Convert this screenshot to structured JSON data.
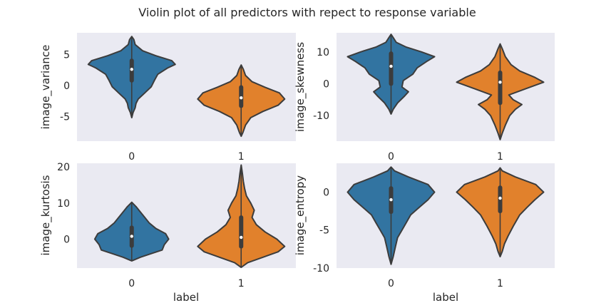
{
  "chart_data": {
    "type": "violin",
    "title": "Violin plot of all predictors with repect to response variable",
    "categories": [
      "0",
      "1"
    ],
    "xlabel": "label",
    "colors": {
      "0": "#3274a1",
      "1": "#e1812c",
      "background": "#eaeaf2",
      "outline": "#3c3c3c"
    },
    "panels": [
      {
        "ylabel": "image_variance",
        "ylim": [
          -9,
          8.5
        ],
        "yticks": [
          -5,
          0,
          5
        ],
        "show_xticks": true,
        "show_xlabel": false,
        "violins": [
          {
            "category": "0",
            "median": 2.6,
            "q1": 0.8,
            "q3": 4.0,
            "profile": [
              [
                -5.2,
                0
              ],
              [
                -4.4,
                0.03
              ],
              [
                -3.6,
                0.08
              ],
              [
                -2.9,
                0.1
              ],
              [
                -2.2,
                0.15
              ],
              [
                -1.2,
                0.3
              ],
              [
                -0.2,
                0.45
              ],
              [
                0.8,
                0.52
              ],
              [
                1.8,
                0.6
              ],
              [
                2.8,
                0.82
              ],
              [
                3.4,
                1.0
              ],
              [
                4.0,
                0.92
              ],
              [
                4.8,
                0.55
              ],
              [
                5.6,
                0.25
              ],
              [
                6.6,
                0.08
              ],
              [
                7.4,
                0.05
              ],
              [
                7.9,
                0
              ]
            ]
          },
          {
            "category": "1",
            "median": -2.0,
            "q1": -3.3,
            "q3": -0.3,
            "profile": [
              [
                -8.2,
                0
              ],
              [
                -7.6,
                0.04
              ],
              [
                -6.4,
                0.1
              ],
              [
                -5.2,
                0.22
              ],
              [
                -4.2,
                0.5
              ],
              [
                -3.2,
                0.85
              ],
              [
                -2.2,
                1.0
              ],
              [
                -1.2,
                0.88
              ],
              [
                -0.3,
                0.55
              ],
              [
                0.6,
                0.25
              ],
              [
                1.6,
                0.1
              ],
              [
                2.6,
                0.05
              ],
              [
                3.3,
                0
              ]
            ]
          }
        ]
      },
      {
        "ylabel": "image_skewness",
        "ylim": [
          -18,
          16
        ],
        "yticks": [
          -10,
          0,
          10
        ],
        "show_xticks": true,
        "show_xlabel": false,
        "violins": [
          {
            "category": "0",
            "median": 5.5,
            "q1": 0.0,
            "q3": 9.5,
            "profile": [
              [
                -9.5,
                0
              ],
              [
                -8.0,
                0.05
              ],
              [
                -6.0,
                0.15
              ],
              [
                -4.0,
                0.3
              ],
              [
                -2.5,
                0.4
              ],
              [
                -1.0,
                0.25
              ],
              [
                1.0,
                0.28
              ],
              [
                3.0,
                0.5
              ],
              [
                5.0,
                0.6
              ],
              [
                7.0,
                0.82
              ],
              [
                8.5,
                1.0
              ],
              [
                10.0,
                0.7
              ],
              [
                11.5,
                0.35
              ],
              [
                13.0,
                0.12
              ],
              [
                14.5,
                0.05
              ],
              [
                15.5,
                0
              ]
            ]
          },
          {
            "category": "1",
            "median": 0.5,
            "q1": -6.0,
            "q3": 3.5,
            "profile": [
              [
                -17.5,
                0
              ],
              [
                -15.5,
                0.05
              ],
              [
                -13.0,
                0.12
              ],
              [
                -10.0,
                0.22
              ],
              [
                -8.0,
                0.35
              ],
              [
                -6.5,
                0.5
              ],
              [
                -5.0,
                0.3
              ],
              [
                -3.5,
                0.2
              ],
              [
                -1.5,
                0.6
              ],
              [
                0.5,
                1.0
              ],
              [
                2.0,
                0.8
              ],
              [
                4.0,
                0.45
              ],
              [
                6.0,
                0.25
              ],
              [
                8.5,
                0.12
              ],
              [
                11.0,
                0.05
              ],
              [
                12.5,
                0
              ]
            ]
          }
        ]
      },
      {
        "ylabel": "image_kurtosis",
        "ylim": [
          -8,
          21
        ],
        "yticks": [
          0,
          10,
          20
        ],
        "show_xticks": true,
        "show_xlabel": true,
        "violins": [
          {
            "category": "0",
            "median": 0.8,
            "q1": -1.8,
            "q3": 3.2,
            "profile": [
              [
                -6.0,
                0
              ],
              [
                -5.0,
                0.2
              ],
              [
                -4.0,
                0.45
              ],
              [
                -3.0,
                0.7
              ],
              [
                -1.5,
                0.75
              ],
              [
                0.0,
                0.85
              ],
              [
                1.5,
                0.78
              ],
              [
                3.0,
                0.55
              ],
              [
                4.5,
                0.4
              ],
              [
                6.0,
                0.3
              ],
              [
                7.5,
                0.2
              ],
              [
                9.0,
                0.1
              ],
              [
                10.2,
                0
              ]
            ]
          },
          {
            "category": "1",
            "median": 0.5,
            "q1": -2.0,
            "q3": 6.0,
            "profile": [
              [
                -7.8,
                0
              ],
              [
                -6.5,
                0.15
              ],
              [
                -5.0,
                0.5
              ],
              [
                -3.5,
                0.85
              ],
              [
                -2.0,
                1.0
              ],
              [
                0.0,
                0.82
              ],
              [
                2.0,
                0.55
              ],
              [
                4.0,
                0.35
              ],
              [
                6.0,
                0.25
              ],
              [
                8.0,
                0.3
              ],
              [
                10.0,
                0.22
              ],
              [
                12.0,
                0.12
              ],
              [
                14.0,
                0.08
              ],
              [
                16.0,
                0.05
              ],
              [
                18.0,
                0.03
              ],
              [
                20.5,
                0
              ]
            ]
          }
        ]
      },
      {
        "ylabel": "image_entropy",
        "ylim": [
          -10,
          3.8
        ],
        "yticks": [
          -10,
          -5,
          0
        ],
        "show_xticks": true,
        "show_xlabel": true,
        "violins": [
          {
            "category": "0",
            "median": -1.0,
            "q1": -2.6,
            "q3": 0.5,
            "profile": [
              [
                -9.5,
                0
              ],
              [
                -8.5,
                0.05
              ],
              [
                -7.2,
                0.1
              ],
              [
                -6.0,
                0.15
              ],
              [
                -5.0,
                0.25
              ],
              [
                -4.0,
                0.35
              ],
              [
                -3.0,
                0.45
              ],
              [
                -2.0,
                0.65
              ],
              [
                -1.0,
                0.85
              ],
              [
                0.0,
                1.0
              ],
              [
                1.0,
                0.85
              ],
              [
                2.0,
                0.4
              ],
              [
                2.8,
                0.08
              ],
              [
                3.3,
                0
              ]
            ]
          },
          {
            "category": "1",
            "median": -0.8,
            "q1": -2.5,
            "q3": 0.6,
            "profile": [
              [
                -8.5,
                0
              ],
              [
                -7.8,
                0.05
              ],
              [
                -6.8,
                0.1
              ],
              [
                -5.8,
                0.18
              ],
              [
                -4.5,
                0.3
              ],
              [
                -3.0,
                0.45
              ],
              [
                -2.0,
                0.62
              ],
              [
                -1.0,
                0.8
              ],
              [
                0.0,
                1.0
              ],
              [
                1.0,
                0.82
              ],
              [
                2.0,
                0.35
              ],
              [
                2.8,
                0.05
              ],
              [
                3.2,
                0
              ]
            ]
          }
        ]
      }
    ]
  }
}
